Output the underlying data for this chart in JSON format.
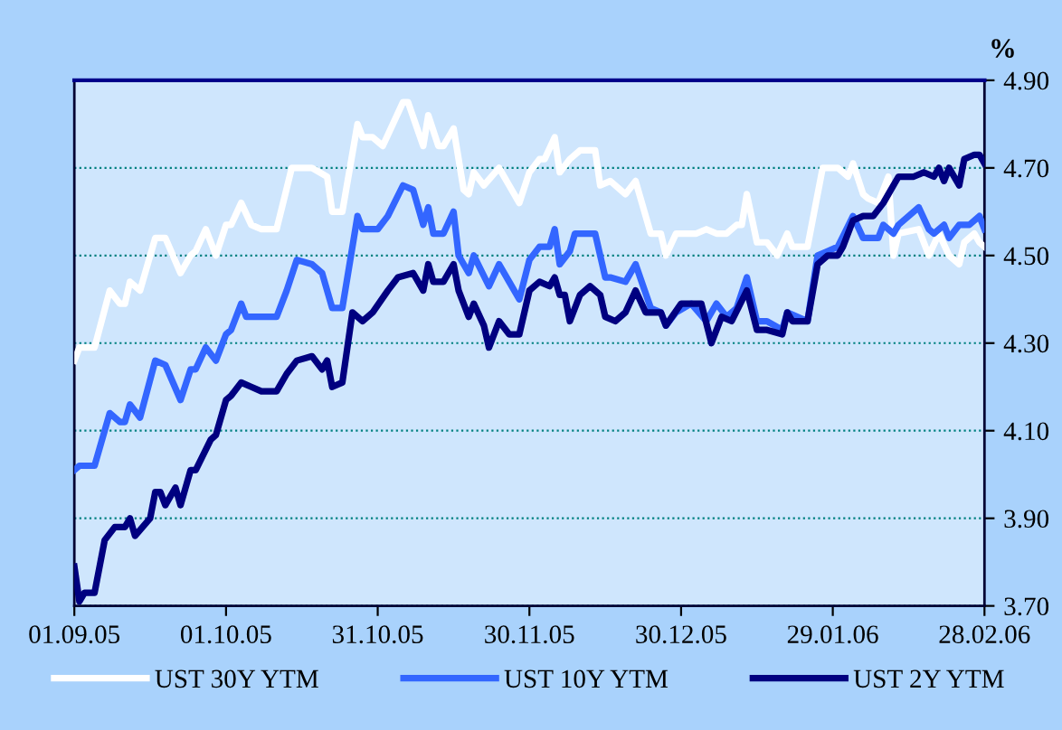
{
  "chart_data": {
    "type": "line",
    "ylabel": "%",
    "xlim": [
      "2005-09-01",
      "2006-02-28"
    ],
    "xticks": [
      {
        "value": "2005-09-01",
        "label": "01.09.05"
      },
      {
        "value": "2005-10-01",
        "label": "01.10.05"
      },
      {
        "value": "2005-10-31",
        "label": "31.10.05"
      },
      {
        "value": "2005-11-30",
        "label": "30.11.05"
      },
      {
        "value": "2005-12-30",
        "label": "30.12.05"
      },
      {
        "value": "2006-01-29",
        "label": "29.01.06"
      },
      {
        "value": "2006-02-28",
        "label": "28.02.06"
      }
    ],
    "ylim": [
      3.7,
      4.9
    ],
    "yticks": [
      {
        "value": 3.7,
        "label": "3.70"
      },
      {
        "value": 3.9,
        "label": "3.90"
      },
      {
        "value": 4.1,
        "label": "4.10"
      },
      {
        "value": 4.3,
        "label": "4.30"
      },
      {
        "value": 4.5,
        "label": "4.50"
      },
      {
        "value": 4.7,
        "label": "4.70"
      },
      {
        "value": 4.9,
        "label": "4.90"
      }
    ],
    "grid": "y",
    "legend": "bottom",
    "marker": "none",
    "line_style": "solid",
    "series": [
      {
        "name": "UST 30Y YTM",
        "color": "#ffffff",
        "x": [
          "2005-09-01",
          "2005-09-02",
          "2005-09-05",
          "2005-09-08",
          "2005-09-10",
          "2005-09-11",
          "2005-09-12",
          "2005-09-14",
          "2005-09-17",
          "2005-09-19",
          "2005-09-22",
          "2005-09-24",
          "2005-09-25",
          "2005-09-27",
          "2005-09-29",
          "2005-10-01",
          "2005-10-02",
          "2005-10-04",
          "2005-10-06",
          "2005-10-08",
          "2005-10-11",
          "2005-10-14",
          "2005-10-18",
          "2005-10-21",
          "2005-10-22",
          "2005-10-24",
          "2005-10-27",
          "2005-10-28",
          "2005-10-30",
          "2005-11-01",
          "2005-11-05",
          "2005-11-06",
          "2005-11-09",
          "2005-11-10",
          "2005-11-12",
          "2005-11-13",
          "2005-11-15",
          "2005-11-17",
          "2005-11-18",
          "2005-11-19",
          "2005-11-21",
          "2005-11-24",
          "2005-11-26",
          "2005-11-28",
          "2005-11-30",
          "2005-12-02",
          "2005-12-03",
          "2005-12-05",
          "2005-12-06",
          "2005-12-08",
          "2005-12-10",
          "2005-12-13",
          "2005-12-14",
          "2005-12-16",
          "2005-12-19",
          "2005-12-21",
          "2005-12-24",
          "2005-12-26",
          "2005-12-27",
          "2005-12-29",
          "2006-01-02",
          "2006-01-04",
          "2006-01-06",
          "2006-01-08",
          "2006-01-10",
          "2006-01-11",
          "2006-01-12",
          "2006-01-14",
          "2006-01-16",
          "2006-01-18",
          "2006-01-20",
          "2006-01-21",
          "2006-01-24",
          "2006-01-27",
          "2006-01-30",
          "2006-02-01",
          "2006-02-02",
          "2006-02-04",
          "2006-02-05",
          "2006-02-07",
          "2006-02-09",
          "2006-02-10",
          "2006-02-11",
          "2006-02-15",
          "2006-02-17",
          "2006-02-19",
          "2006-02-21",
          "2006-02-23",
          "2006-02-24",
          "2006-02-26",
          "2006-02-27",
          "2006-02-28"
        ],
        "values": [
          4.26,
          4.29,
          4.29,
          4.42,
          4.39,
          4.39,
          4.44,
          4.42,
          4.54,
          4.54,
          4.46,
          4.5,
          4.51,
          4.56,
          4.5,
          4.57,
          4.57,
          4.62,
          4.57,
          4.56,
          4.56,
          4.7,
          4.7,
          4.68,
          4.6,
          4.6,
          4.8,
          4.77,
          4.77,
          4.75,
          4.85,
          4.85,
          4.75,
          4.82,
          4.75,
          4.75,
          4.79,
          4.65,
          4.64,
          4.69,
          4.66,
          4.7,
          4.66,
          4.62,
          4.69,
          4.72,
          4.72,
          4.77,
          4.69,
          4.72,
          4.74,
          4.74,
          4.66,
          4.67,
          4.64,
          4.67,
          4.55,
          4.55,
          4.5,
          4.55,
          4.55,
          4.56,
          4.55,
          4.55,
          4.57,
          4.57,
          4.64,
          4.53,
          4.53,
          4.5,
          4.55,
          4.52,
          4.52,
          4.7,
          4.7,
          4.68,
          4.71,
          4.64,
          4.63,
          4.62,
          4.68,
          4.5,
          4.55,
          4.56,
          4.5,
          4.55,
          4.5,
          4.48,
          4.53,
          4.55,
          4.53,
          4.52
        ]
      },
      {
        "name": "UST 10Y YTM",
        "color": "#3366ff",
        "x": [
          "2005-09-01",
          "2005-09-02",
          "2005-09-05",
          "2005-09-08",
          "2005-09-10",
          "2005-09-11",
          "2005-09-12",
          "2005-09-14",
          "2005-09-17",
          "2005-09-19",
          "2005-09-22",
          "2005-09-24",
          "2005-09-25",
          "2005-09-27",
          "2005-09-29",
          "2005-10-01",
          "2005-10-02",
          "2005-10-04",
          "2005-10-05",
          "2005-10-08",
          "2005-10-11",
          "2005-10-13",
          "2005-10-15",
          "2005-10-18",
          "2005-10-20",
          "2005-10-22",
          "2005-10-24",
          "2005-10-27",
          "2005-10-28",
          "2005-10-31",
          "2005-11-02",
          "2005-11-05",
          "2005-11-07",
          "2005-11-09",
          "2005-11-10",
          "2005-11-11",
          "2005-11-13",
          "2005-11-15",
          "2005-11-16",
          "2005-11-18",
          "2005-11-19",
          "2005-11-22",
          "2005-11-24",
          "2005-11-26",
          "2005-11-28",
          "2005-11-30",
          "2005-12-02",
          "2005-12-04",
          "2005-12-05",
          "2005-12-06",
          "2005-12-08",
          "2005-12-09",
          "2005-12-13",
          "2005-12-15",
          "2005-12-16",
          "2005-12-19",
          "2005-12-21",
          "2005-12-24",
          "2005-12-26",
          "2005-12-27",
          "2005-12-29",
          "2006-01-01",
          "2006-01-04",
          "2006-01-06",
          "2006-01-08",
          "2006-01-10",
          "2006-01-12",
          "2006-01-14",
          "2006-01-16",
          "2006-01-19",
          "2006-01-20",
          "2006-01-24",
          "2006-01-26",
          "2006-01-28",
          "2006-01-30",
          "2006-02-02",
          "2006-02-04",
          "2006-02-07",
          "2006-02-08",
          "2006-02-10",
          "2006-02-11",
          "2006-02-15",
          "2006-02-17",
          "2006-02-18",
          "2006-02-20",
          "2006-02-21",
          "2006-02-23",
          "2006-02-25",
          "2006-02-27",
          "2006-02-28"
        ],
        "values": [
          4.01,
          4.02,
          4.02,
          4.14,
          4.12,
          4.12,
          4.16,
          4.13,
          4.26,
          4.25,
          4.17,
          4.24,
          4.24,
          4.29,
          4.26,
          4.32,
          4.33,
          4.39,
          4.36,
          4.36,
          4.36,
          4.42,
          4.49,
          4.48,
          4.46,
          4.38,
          4.38,
          4.59,
          4.56,
          4.56,
          4.59,
          4.66,
          4.65,
          4.57,
          4.61,
          4.55,
          4.55,
          4.6,
          4.5,
          4.46,
          4.5,
          4.43,
          4.48,
          4.44,
          4.4,
          4.49,
          4.52,
          4.52,
          4.56,
          4.48,
          4.51,
          4.55,
          4.55,
          4.45,
          4.45,
          4.44,
          4.48,
          4.38,
          4.37,
          4.34,
          4.37,
          4.39,
          4.35,
          4.39,
          4.36,
          4.38,
          4.45,
          4.35,
          4.35,
          4.33,
          4.37,
          4.35,
          4.5,
          4.51,
          4.52,
          4.59,
          4.54,
          4.54,
          4.57,
          4.55,
          4.57,
          4.61,
          4.56,
          4.55,
          4.57,
          4.54,
          4.57,
          4.57,
          4.59,
          4.56
        ]
      },
      {
        "name": "UST 2Y YTM",
        "color": "#000080",
        "x": [
          "2005-09-01",
          "2005-09-02",
          "2005-09-03",
          "2005-09-05",
          "2005-09-07",
          "2005-09-09",
          "2005-09-11",
          "2005-09-12",
          "2005-09-13",
          "2005-09-16",
          "2005-09-17",
          "2005-09-18",
          "2005-09-19",
          "2005-09-21",
          "2005-09-22",
          "2005-09-24",
          "2005-09-25",
          "2005-09-28",
          "2005-09-29",
          "2005-10-01",
          "2005-10-02",
          "2005-10-04",
          "2005-10-06",
          "2005-10-08",
          "2005-10-11",
          "2005-10-13",
          "2005-10-15",
          "2005-10-18",
          "2005-10-20",
          "2005-10-21",
          "2005-10-22",
          "2005-10-24",
          "2005-10-26",
          "2005-10-28",
          "2005-10-30",
          "2005-11-02",
          "2005-11-04",
          "2005-11-07",
          "2005-11-09",
          "2005-11-10",
          "2005-11-11",
          "2005-11-13",
          "2005-11-15",
          "2005-11-16",
          "2005-11-18",
          "2005-11-19",
          "2005-11-21",
          "2005-11-22",
          "2005-11-24",
          "2005-11-26",
          "2005-11-28",
          "2005-11-30",
          "2005-12-02",
          "2005-12-04",
          "2005-12-05",
          "2005-12-06",
          "2005-12-07",
          "2005-12-08",
          "2005-12-10",
          "2005-12-12",
          "2005-12-14",
          "2005-12-15",
          "2005-12-17",
          "2005-12-19",
          "2005-12-21",
          "2005-12-23",
          "2005-12-26",
          "2005-12-27",
          "2005-12-30",
          "2006-01-03",
          "2006-01-05",
          "2006-01-07",
          "2006-01-09",
          "2006-01-12",
          "2006-01-14",
          "2006-01-16",
          "2006-01-19",
          "2006-01-20",
          "2006-01-21",
          "2006-01-24",
          "2006-01-26",
          "2006-01-28",
          "2006-01-30",
          "2006-01-31",
          "2006-02-02",
          "2006-02-04",
          "2006-02-06",
          "2006-02-08",
          "2006-02-09",
          "2006-02-11",
          "2006-02-14",
          "2006-02-16",
          "2006-02-18",
          "2006-02-19",
          "2006-02-20",
          "2006-02-21",
          "2006-02-23",
          "2006-02-24",
          "2006-02-26",
          "2006-02-27",
          "2006-02-28"
        ],
        "values": [
          3.79,
          3.71,
          3.73,
          3.73,
          3.85,
          3.88,
          3.88,
          3.9,
          3.86,
          3.9,
          3.96,
          3.96,
          3.93,
          3.97,
          3.93,
          4.01,
          4.01,
          4.08,
          4.09,
          4.17,
          4.18,
          4.21,
          4.2,
          4.19,
          4.19,
          4.23,
          4.26,
          4.27,
          4.24,
          4.26,
          4.2,
          4.21,
          4.37,
          4.35,
          4.37,
          4.42,
          4.45,
          4.46,
          4.42,
          4.48,
          4.44,
          4.44,
          4.48,
          4.42,
          4.36,
          4.39,
          4.34,
          4.29,
          4.35,
          4.32,
          4.32,
          4.42,
          4.44,
          4.43,
          4.45,
          4.41,
          4.41,
          4.35,
          4.41,
          4.43,
          4.41,
          4.36,
          4.35,
          4.37,
          4.42,
          4.37,
          4.37,
          4.34,
          4.39,
          4.39,
          4.3,
          4.36,
          4.35,
          4.42,
          4.33,
          4.33,
          4.32,
          4.37,
          4.35,
          4.35,
          4.48,
          4.5,
          4.5,
          4.52,
          4.58,
          4.59,
          4.59,
          4.62,
          4.64,
          4.68,
          4.68,
          4.69,
          4.68,
          4.7,
          4.67,
          4.7,
          4.66,
          4.72,
          4.73,
          4.73,
          4.71
        ]
      }
    ]
  }
}
